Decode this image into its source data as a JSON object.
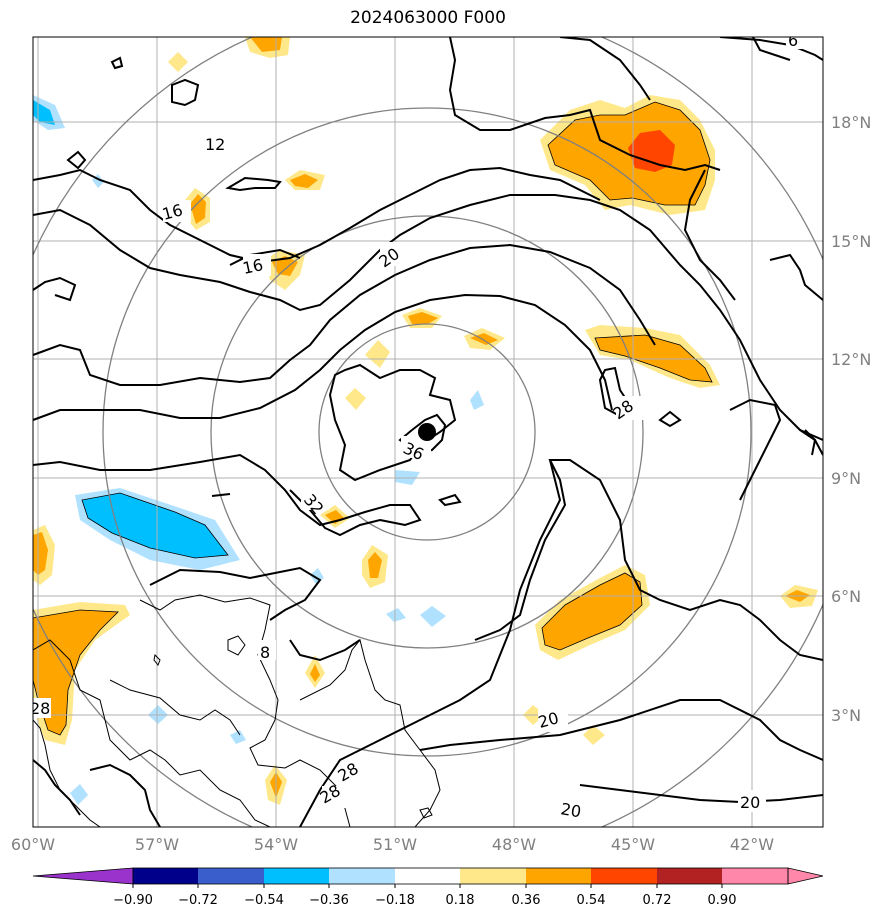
{
  "title": "2024063000 F000",
  "lat_labels": [
    "18°N",
    "15°N",
    "12°N",
    "9°N",
    "6°N",
    "3°N"
  ],
  "lon_labels": [
    "60°W",
    "57°W",
    "54°W",
    "51°W",
    "48°W",
    "45°W",
    "42°W"
  ],
  "colorbar": {
    "ticks": [
      "−0.90",
      "−0.72",
      "−0.54",
      "−0.36",
      "−0.18",
      "0.18",
      "0.36",
      "0.54",
      "0.72",
      "0.90"
    ],
    "colors": [
      "#9933cc",
      "#00008b",
      "#3a5fcd",
      "#00bfff",
      "#b0e2ff",
      "#ffffff",
      "#ffe88a",
      "#ffa500",
      "#ff4500",
      "#b22222",
      "#ff88aa",
      "#ff88aa"
    ]
  },
  "contour_labels": [
    "12",
    "16",
    "16",
    "20",
    "28",
    "36",
    "32",
    "8",
    "28",
    "28",
    "28",
    "20",
    "20",
    "20",
    "6"
  ],
  "map": {
    "extent_lon": [
      -60,
      -40
    ],
    "extent_lat": [
      0,
      20
    ],
    "storm_center": {
      "lon": -50.1,
      "lat": 10.0
    },
    "range_rings": 4,
    "colors": {
      "contour": "#000000",
      "coast": "#000000",
      "ring": "#808080",
      "grid": "#b0b0b0",
      "storm": "#000000"
    }
  }
}
